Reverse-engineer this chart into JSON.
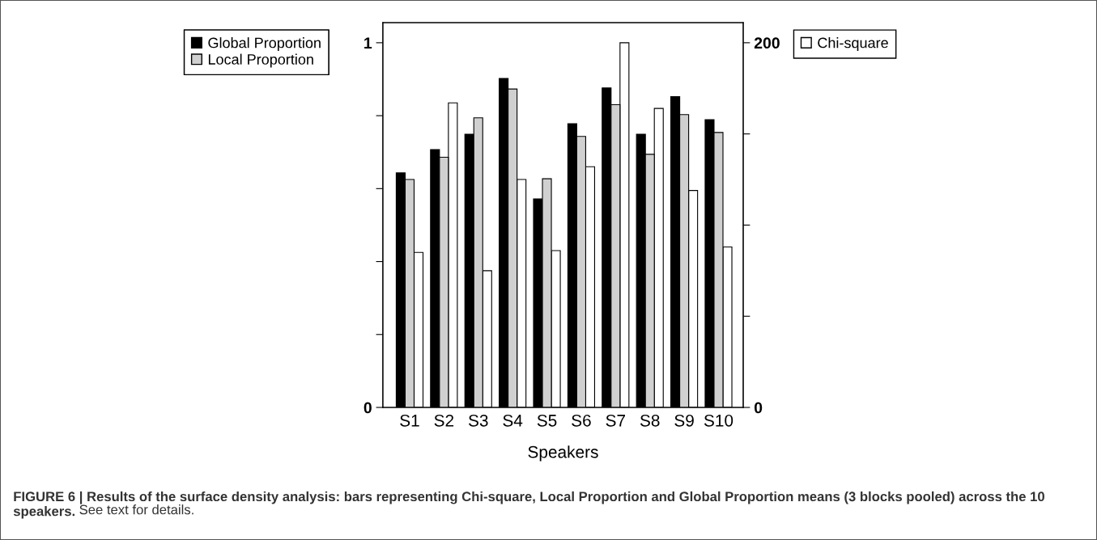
{
  "chart_data": {
    "type": "bar",
    "categories": [
      "S1",
      "S2",
      "S3",
      "S4",
      "S5",
      "S6",
      "S7",
      "S8",
      "S9",
      "S10"
    ],
    "series": [
      {
        "name": "Global Proportion",
        "color": "#000000",
        "values": [
          0.643,
          0.707,
          0.749,
          0.902,
          0.572,
          0.778,
          0.876,
          0.749,
          0.852,
          0.789
        ]
      },
      {
        "name": "Local Proportion",
        "color": "#d0d0d0",
        "values": [
          0.625,
          0.686,
          0.794,
          0.873,
          0.627,
          0.743,
          0.83,
          0.694,
          0.803,
          0.754
        ]
      },
      {
        "name": "Chi-square",
        "color": "#ffffff",
        "axis": "y2",
        "values": [
          85,
          167,
          75,
          125,
          86,
          132,
          200,
          164,
          119,
          88
        ]
      }
    ],
    "xlabel": "Speakers",
    "ylim": [
      0,
      1.055
    ],
    "yticks": [
      0,
      {
        "value": 0.2,
        "label": null
      },
      {
        "value": 0.4,
        "label": null
      },
      {
        "value": 0.6,
        "label": null
      },
      {
        "value": 0.8,
        "label": null
      },
      1
    ],
    "y2lim": [
      0,
      211
    ],
    "y2ticks": [
      0,
      {
        "value": 50,
        "label": null
      },
      {
        "value": 100,
        "label": null
      },
      {
        "value": 150,
        "label": null
      },
      200
    ],
    "legend": "top",
    "annotations": [
      "FIGURE 6 | Results of the surface density analysis: bars representing Chi-square, Local Proportion and Global Proportion means (3 blocks pooled) across the 10 speakers.",
      "See text for details."
    ]
  }
}
